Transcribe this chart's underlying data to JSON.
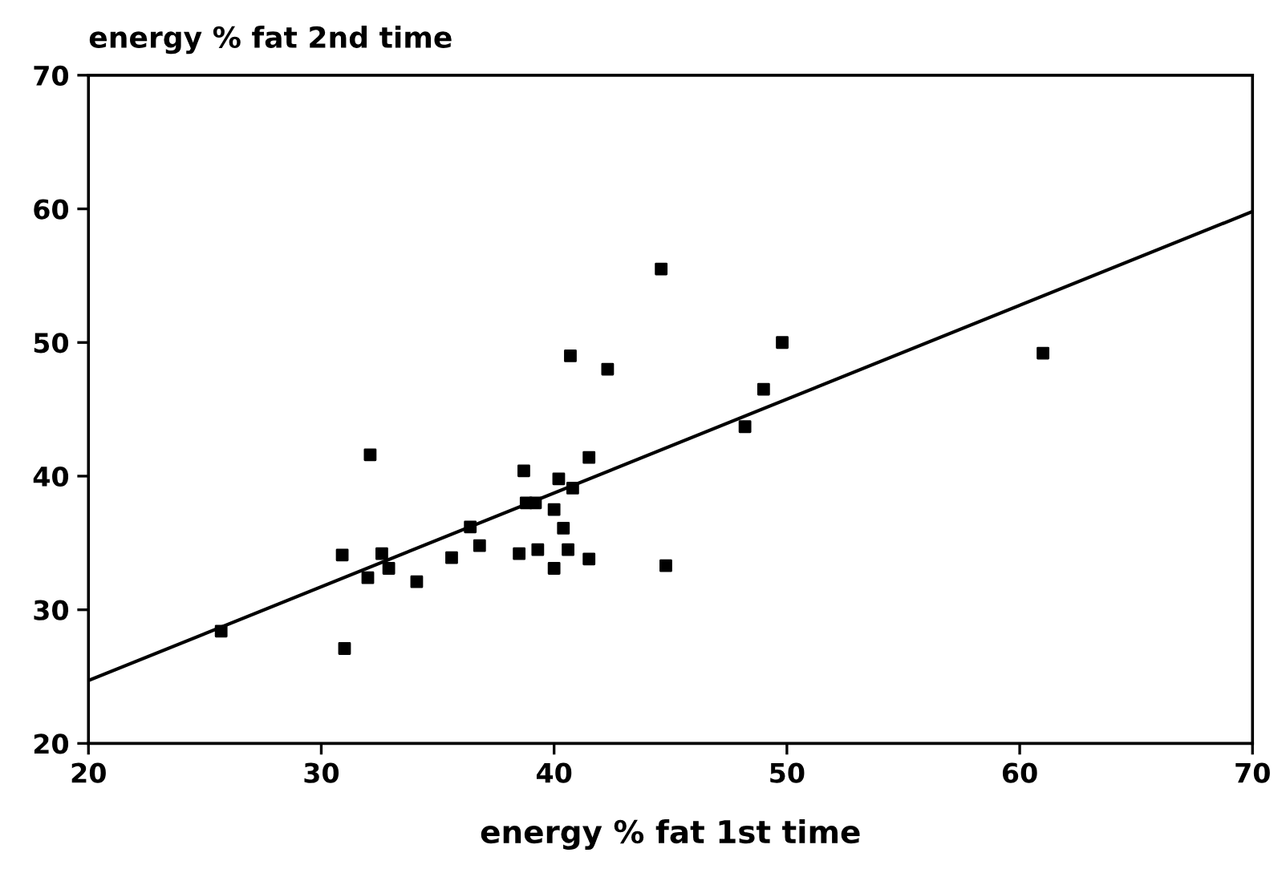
{
  "chart_data": {
    "type": "scatter",
    "ylabel": "energy % fat 2nd time",
    "xlabel": "energy % fat 1st time",
    "xlim": [
      20,
      70
    ],
    "ylim": [
      20,
      70
    ],
    "xticks": [
      20,
      30,
      40,
      50,
      60,
      70
    ],
    "yticks": [
      20,
      30,
      40,
      50,
      60,
      70
    ],
    "grid": false,
    "legend": false,
    "series": [
      {
        "marker": "square",
        "color": "#000000",
        "x": [
          25.7,
          30.9,
          31.0,
          32.0,
          32.1,
          32.6,
          32.9,
          34.1,
          35.6,
          36.4,
          36.8,
          38.5,
          38.7,
          38.8,
          39.2,
          39.3,
          40.0,
          40.0,
          40.2,
          40.4,
          40.6,
          40.7,
          40.8,
          41.5,
          41.5,
          42.3,
          44.6,
          44.8,
          48.2,
          49.0,
          49.8,
          61.0
        ],
        "values": [
          28.4,
          34.1,
          27.1,
          32.4,
          41.6,
          34.2,
          33.1,
          32.1,
          33.9,
          36.2,
          34.8,
          34.2,
          40.4,
          38.0,
          38.0,
          34.5,
          33.1,
          37.5,
          39.8,
          36.1,
          34.5,
          49.0,
          39.1,
          41.4,
          33.8,
          48.0,
          55.5,
          33.3,
          43.7,
          46.5,
          50.0,
          49.2
        ]
      },
      {
        "type": "line",
        "marker": "none",
        "color": "#000000",
        "x": [
          20,
          70
        ],
        "values": [
          24.7,
          59.8
        ]
      }
    ]
  }
}
